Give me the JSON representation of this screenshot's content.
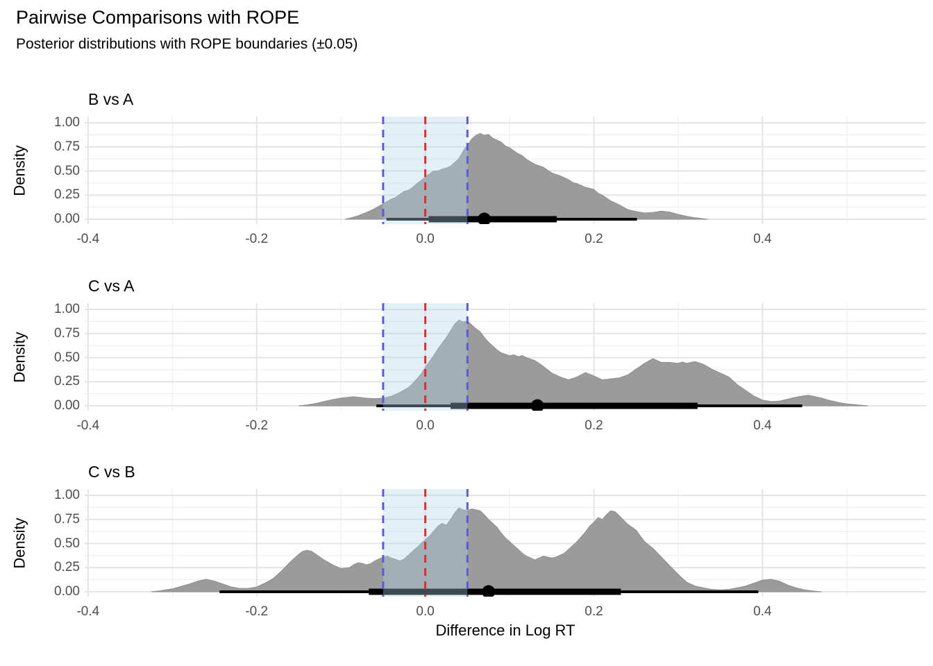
{
  "title": "Pairwise Comparisons with ROPE",
  "subtitle": "Posterior distributions with ROPE boundaries (±0.05)",
  "x_axis_title": "Difference in Log RT",
  "y_axis_title": "Density",
  "colors": {
    "density_fill": "#9b9b9b",
    "density_edge": "#8f8f8f",
    "rope_fill": "#ADD8E6",
    "rope_fill_opacity": 0.35,
    "rope_boundary_line": "#5B5BD8",
    "zero_line": "#E02C2C",
    "interval": "#000000",
    "grid_major": "#e4e4e4",
    "grid_minor": "#efefef",
    "tick_label": "#4d4d4d"
  },
  "chart_data": [
    {
      "type": "area",
      "title": "B vs A",
      "ylabel": "Density",
      "xlim": [
        -0.404,
        0.594
      ],
      "ylim": [
        0,
        1.05
      ],
      "x_ticks": [
        -0.4,
        -0.2,
        0.0,
        0.2,
        0.4
      ],
      "x_tick_labels": [
        "-0.4",
        "-0.2",
        "0.0",
        "0.2",
        "0.4"
      ],
      "x_minor_ticks": [
        -0.3,
        -0.1,
        0.1,
        0.3,
        0.5
      ],
      "y_ticks": [
        0,
        0.25,
        0.5,
        0.75,
        1.0
      ],
      "y_tick_labels": [
        "0.00",
        "0.25",
        "0.50",
        "0.75",
        "1.00"
      ],
      "y_minor_ticks": [
        0.125,
        0.375,
        0.625,
        0.875
      ],
      "rope": [
        -0.05,
        0.05
      ],
      "zero_line_x": 0,
      "point_estimate": 0.07,
      "interval_wide": [
        -0.046,
        0.251
      ],
      "interval_narrow": [
        0.004,
        0.156
      ],
      "density": [
        [
          -0.095,
          0
        ],
        [
          -0.09,
          0.01
        ],
        [
          -0.08,
          0.035
        ],
        [
          -0.07,
          0.07
        ],
        [
          -0.06,
          0.11
        ],
        [
          -0.05,
          0.16
        ],
        [
          -0.045,
          0.185
        ],
        [
          -0.04,
          0.21
        ],
        [
          -0.035,
          0.225
        ],
        [
          -0.03,
          0.26
        ],
        [
          -0.025,
          0.29
        ],
        [
          -0.02,
          0.3
        ],
        [
          -0.015,
          0.33
        ],
        [
          -0.01,
          0.37
        ],
        [
          -0.005,
          0.4
        ],
        [
          0,
          0.44
        ],
        [
          0.005,
          0.47
        ],
        [
          0.01,
          0.5
        ],
        [
          0.015,
          0.5
        ],
        [
          0.02,
          0.52
        ],
        [
          0.025,
          0.53
        ],
        [
          0.03,
          0.55
        ],
        [
          0.035,
          0.59
        ],
        [
          0.04,
          0.63
        ],
        [
          0.045,
          0.71
        ],
        [
          0.05,
          0.77
        ],
        [
          0.055,
          0.83
        ],
        [
          0.06,
          0.87
        ],
        [
          0.065,
          0.89
        ],
        [
          0.07,
          0.87
        ],
        [
          0.075,
          0.88
        ],
        [
          0.08,
          0.84
        ],
        [
          0.085,
          0.82
        ],
        [
          0.09,
          0.8
        ],
        [
          0.095,
          0.76
        ],
        [
          0.1,
          0.74
        ],
        [
          0.11,
          0.68
        ],
        [
          0.115,
          0.66
        ],
        [
          0.12,
          0.62
        ],
        [
          0.13,
          0.57
        ],
        [
          0.14,
          0.54
        ],
        [
          0.145,
          0.51
        ],
        [
          0.15,
          0.48
        ],
        [
          0.16,
          0.45
        ],
        [
          0.165,
          0.43
        ],
        [
          0.17,
          0.41
        ],
        [
          0.175,
          0.38
        ],
        [
          0.18,
          0.37
        ],
        [
          0.19,
          0.33
        ],
        [
          0.2,
          0.31
        ],
        [
          0.205,
          0.27
        ],
        [
          0.21,
          0.25
        ],
        [
          0.215,
          0.22
        ],
        [
          0.22,
          0.19
        ],
        [
          0.23,
          0.15
        ],
        [
          0.24,
          0.1
        ],
        [
          0.25,
          0.08
        ],
        [
          0.26,
          0.065
        ],
        [
          0.27,
          0.07
        ],
        [
          0.28,
          0.085
        ],
        [
          0.29,
          0.075
        ],
        [
          0.3,
          0.05
        ],
        [
          0.31,
          0.03
        ],
        [
          0.32,
          0.015
        ],
        [
          0.335,
          0
        ]
      ]
    },
    {
      "type": "area",
      "title": "C vs A",
      "ylabel": "Density",
      "xlim": [
        -0.404,
        0.594
      ],
      "ylim": [
        0,
        1.05
      ],
      "x_ticks": [
        -0.4,
        -0.2,
        0.0,
        0.2,
        0.4
      ],
      "x_tick_labels": [
        "-0.4",
        "-0.2",
        "0.0",
        "0.2",
        "0.4"
      ],
      "x_minor_ticks": [
        -0.3,
        -0.1,
        0.1,
        0.3,
        0.5
      ],
      "y_ticks": [
        0,
        0.25,
        0.5,
        0.75,
        1.0
      ],
      "y_tick_labels": [
        "0.00",
        "0.25",
        "0.50",
        "0.75",
        "1.00"
      ],
      "y_minor_ticks": [
        0.125,
        0.375,
        0.625,
        0.875
      ],
      "rope": [
        -0.05,
        0.05
      ],
      "zero_line_x": 0,
      "point_estimate": 0.133,
      "interval_wide": [
        -0.058,
        0.447
      ],
      "interval_narrow": [
        0.03,
        0.323
      ],
      "density": [
        [
          -0.15,
          0
        ],
        [
          -0.14,
          0.01
        ],
        [
          -0.13,
          0.025
        ],
        [
          -0.12,
          0.045
        ],
        [
          -0.11,
          0.065
        ],
        [
          -0.1,
          0.08
        ],
        [
          -0.09,
          0.09
        ],
        [
          -0.085,
          0.095
        ],
        [
          -0.08,
          0.09
        ],
        [
          -0.07,
          0.08
        ],
        [
          -0.06,
          0.075
        ],
        [
          -0.05,
          0.08
        ],
        [
          -0.04,
          0.1
        ],
        [
          -0.03,
          0.14
        ],
        [
          -0.02,
          0.19
        ],
        [
          -0.015,
          0.23
        ],
        [
          -0.01,
          0.28
        ],
        [
          -0.005,
          0.33
        ],
        [
          0,
          0.4
        ],
        [
          0.005,
          0.46
        ],
        [
          0.01,
          0.52
        ],
        [
          0.015,
          0.59
        ],
        [
          0.02,
          0.65
        ],
        [
          0.025,
          0.71
        ],
        [
          0.03,
          0.78
        ],
        [
          0.035,
          0.85
        ],
        [
          0.04,
          0.89
        ],
        [
          0.045,
          0.87
        ],
        [
          0.05,
          0.88
        ],
        [
          0.055,
          0.84
        ],
        [
          0.06,
          0.8
        ],
        [
          0.065,
          0.77
        ],
        [
          0.07,
          0.71
        ],
        [
          0.075,
          0.66
        ],
        [
          0.08,
          0.62
        ],
        [
          0.085,
          0.58
        ],
        [
          0.09,
          0.55
        ],
        [
          0.1,
          0.52
        ],
        [
          0.105,
          0.53
        ],
        [
          0.11,
          0.51
        ],
        [
          0.115,
          0.52
        ],
        [
          0.12,
          0.5
        ],
        [
          0.13,
          0.47
        ],
        [
          0.135,
          0.44
        ],
        [
          0.14,
          0.41
        ],
        [
          0.15,
          0.34
        ],
        [
          0.16,
          0.3
        ],
        [
          0.17,
          0.27
        ],
        [
          0.18,
          0.3
        ],
        [
          0.19,
          0.345
        ],
        [
          0.2,
          0.31
        ],
        [
          0.21,
          0.27
        ],
        [
          0.22,
          0.28
        ],
        [
          0.23,
          0.29
        ],
        [
          0.24,
          0.32
        ],
        [
          0.25,
          0.38
        ],
        [
          0.26,
          0.44
        ],
        [
          0.27,
          0.49
        ],
        [
          0.275,
          0.47
        ],
        [
          0.28,
          0.45
        ],
        [
          0.29,
          0.45
        ],
        [
          0.3,
          0.44
        ],
        [
          0.305,
          0.455
        ],
        [
          0.31,
          0.44
        ],
        [
          0.32,
          0.46
        ],
        [
          0.33,
          0.43
        ],
        [
          0.34,
          0.38
        ],
        [
          0.35,
          0.34
        ],
        [
          0.36,
          0.3
        ],
        [
          0.37,
          0.22
        ],
        [
          0.38,
          0.16
        ],
        [
          0.39,
          0.1
        ],
        [
          0.4,
          0.06
        ],
        [
          0.41,
          0.045
        ],
        [
          0.42,
          0.05
        ],
        [
          0.43,
          0.07
        ],
        [
          0.44,
          0.09
        ],
        [
          0.45,
          0.105
        ],
        [
          0.455,
          0.11
        ],
        [
          0.46,
          0.1
        ],
        [
          0.47,
          0.08
        ],
        [
          0.48,
          0.055
        ],
        [
          0.49,
          0.035
        ],
        [
          0.5,
          0.02
        ],
        [
          0.51,
          0.012
        ],
        [
          0.525,
          0
        ]
      ]
    },
    {
      "type": "area",
      "title": "C vs B",
      "ylabel": "Density",
      "xlim": [
        -0.404,
        0.594
      ],
      "ylim": [
        0,
        1.05
      ],
      "x_ticks": [
        -0.4,
        -0.2,
        0.0,
        0.2,
        0.4
      ],
      "x_tick_labels": [
        "-0.4",
        "-0.2",
        "0.0",
        "0.2",
        "0.4"
      ],
      "x_minor_ticks": [
        -0.3,
        -0.1,
        0.1,
        0.3,
        0.5
      ],
      "y_ticks": [
        0,
        0.25,
        0.5,
        0.75,
        1.0
      ],
      "y_tick_labels": [
        "0.00",
        "0.25",
        "0.50",
        "0.75",
        "1.00"
      ],
      "y_minor_ticks": [
        0.125,
        0.375,
        0.625,
        0.875
      ],
      "rope": [
        -0.05,
        0.05
      ],
      "zero_line_x": 0,
      "point_estimate": 0.075,
      "interval_wide": [
        -0.244,
        0.395
      ],
      "interval_narrow": [
        -0.067,
        0.232
      ],
      "density": [
        [
          -0.325,
          0
        ],
        [
          -0.315,
          0.01
        ],
        [
          -0.3,
          0.03
        ],
        [
          -0.29,
          0.055
        ],
        [
          -0.28,
          0.08
        ],
        [
          -0.27,
          0.11
        ],
        [
          -0.26,
          0.13
        ],
        [
          -0.25,
          0.11
        ],
        [
          -0.24,
          0.08
        ],
        [
          -0.23,
          0.05
        ],
        [
          -0.22,
          0.035
        ],
        [
          -0.21,
          0.035
        ],
        [
          -0.2,
          0.05
        ],
        [
          -0.19,
          0.09
        ],
        [
          -0.18,
          0.14
        ],
        [
          -0.17,
          0.22
        ],
        [
          -0.16,
          0.31
        ],
        [
          -0.15,
          0.39
        ],
        [
          -0.145,
          0.42
        ],
        [
          -0.14,
          0.43
        ],
        [
          -0.135,
          0.42
        ],
        [
          -0.13,
          0.39
        ],
        [
          -0.12,
          0.33
        ],
        [
          -0.11,
          0.28
        ],
        [
          -0.1,
          0.24
        ],
        [
          -0.09,
          0.25
        ],
        [
          -0.085,
          0.28
        ],
        [
          -0.08,
          0.3
        ],
        [
          -0.075,
          0.295
        ],
        [
          -0.07,
          0.28
        ],
        [
          -0.065,
          0.29
        ],
        [
          -0.06,
          0.32
        ],
        [
          -0.05,
          0.36
        ],
        [
          -0.045,
          0.37
        ],
        [
          -0.04,
          0.35
        ],
        [
          -0.03,
          0.32
        ],
        [
          -0.025,
          0.34
        ],
        [
          -0.02,
          0.38
        ],
        [
          -0.015,
          0.42
        ],
        [
          -0.01,
          0.46
        ],
        [
          -0.005,
          0.5
        ],
        [
          0,
          0.54
        ],
        [
          0.005,
          0.58
        ],
        [
          0.01,
          0.63
        ],
        [
          0.015,
          0.68
        ],
        [
          0.02,
          0.71
        ],
        [
          0.025,
          0.69
        ],
        [
          0.03,
          0.75
        ],
        [
          0.035,
          0.82
        ],
        [
          0.04,
          0.87
        ],
        [
          0.045,
          0.85
        ],
        [
          0.05,
          0.84
        ],
        [
          0.055,
          0.86
        ],
        [
          0.06,
          0.85
        ],
        [
          0.065,
          0.84
        ],
        [
          0.07,
          0.8
        ],
        [
          0.075,
          0.75
        ],
        [
          0.08,
          0.71
        ],
        [
          0.085,
          0.67
        ],
        [
          0.09,
          0.61
        ],
        [
          0.095,
          0.56
        ],
        [
          0.1,
          0.52
        ],
        [
          0.11,
          0.44
        ],
        [
          0.115,
          0.4
        ],
        [
          0.12,
          0.37
        ],
        [
          0.13,
          0.33
        ],
        [
          0.135,
          0.35
        ],
        [
          0.14,
          0.37
        ],
        [
          0.15,
          0.35
        ],
        [
          0.155,
          0.36
        ],
        [
          0.16,
          0.38
        ],
        [
          0.165,
          0.4
        ],
        [
          0.17,
          0.44
        ],
        [
          0.175,
          0.48
        ],
        [
          0.18,
          0.52
        ],
        [
          0.19,
          0.62
        ],
        [
          0.195,
          0.68
        ],
        [
          0.2,
          0.72
        ],
        [
          0.205,
          0.77
        ],
        [
          0.21,
          0.75
        ],
        [
          0.215,
          0.8
        ],
        [
          0.22,
          0.84
        ],
        [
          0.225,
          0.83
        ],
        [
          0.23,
          0.79
        ],
        [
          0.24,
          0.7
        ],
        [
          0.25,
          0.64
        ],
        [
          0.26,
          0.52
        ],
        [
          0.27,
          0.45
        ],
        [
          0.28,
          0.36
        ],
        [
          0.29,
          0.27
        ],
        [
          0.3,
          0.18
        ],
        [
          0.31,
          0.1
        ],
        [
          0.32,
          0.06
        ],
        [
          0.33,
          0.04
        ],
        [
          0.34,
          0.025
        ],
        [
          0.35,
          0.02
        ],
        [
          0.36,
          0.025
        ],
        [
          0.37,
          0.04
        ],
        [
          0.38,
          0.06
        ],
        [
          0.39,
          0.09
        ],
        [
          0.4,
          0.12
        ],
        [
          0.41,
          0.13
        ],
        [
          0.42,
          0.11
        ],
        [
          0.43,
          0.07
        ],
        [
          0.44,
          0.04
        ],
        [
          0.45,
          0.02
        ],
        [
          0.46,
          0.008
        ],
        [
          0.47,
          0
        ]
      ]
    }
  ]
}
